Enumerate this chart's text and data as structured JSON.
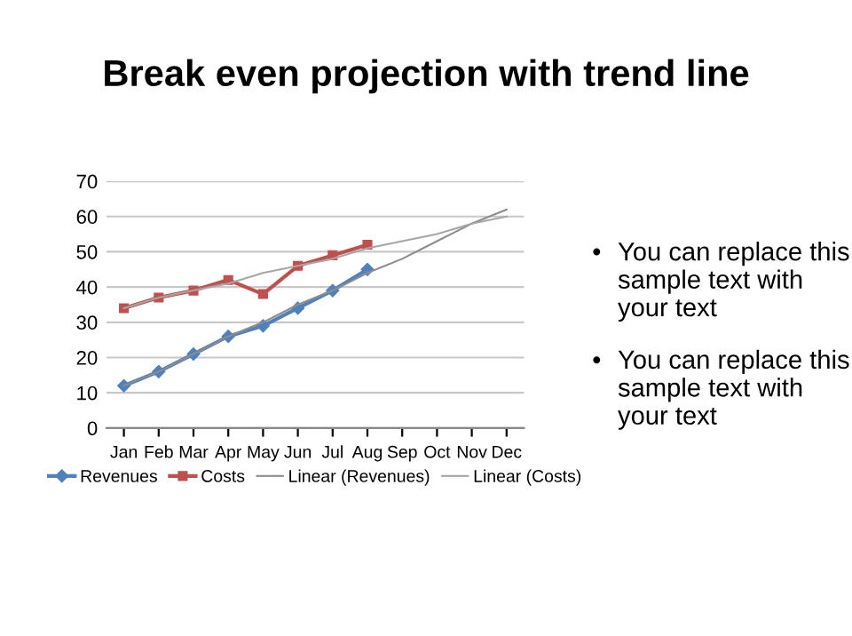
{
  "chart_data": {
    "type": "line",
    "title": "Break even projection with trend line",
    "categories": [
      "Jan",
      "Feb",
      "Mar",
      "Apr",
      "May",
      "Jun",
      "Jul",
      "Aug",
      "Sep",
      "Oct",
      "Nov",
      "Dec"
    ],
    "series": [
      {
        "name": "Revenues",
        "color": "#4f81bd",
        "marker": "diamond",
        "values": [
          12,
          16,
          21,
          26,
          29,
          34,
          39,
          45,
          null,
          null,
          null,
          null
        ]
      },
      {
        "name": "Costs",
        "color": "#c0504d",
        "marker": "square",
        "values": [
          34,
          37,
          39,
          42,
          38,
          46,
          49,
          52,
          null,
          null,
          null,
          null
        ]
      },
      {
        "name": "Linear (Revenues)",
        "color": "#8c8c8c",
        "marker": "none",
        "values": [
          12,
          16,
          21,
          26,
          30,
          35,
          39,
          44,
          48,
          53,
          58,
          62
        ]
      },
      {
        "name": "Linear (Costs)",
        "color": "#a6a6a6",
        "marker": "none",
        "values": [
          34,
          37,
          39,
          41,
          44,
          46,
          48,
          51,
          53,
          55,
          58,
          60
        ]
      }
    ],
    "ylim": [
      0,
      70
    ],
    "yticks": [
      0,
      10,
      20,
      30,
      40,
      50,
      60,
      70
    ],
    "grid": "y",
    "legend": "bottom",
    "line_style": "solid",
    "annotations": [
      "•",
      "You can replace this sample text with your text",
      "•",
      "You can replace this sample text with your text"
    ]
  }
}
